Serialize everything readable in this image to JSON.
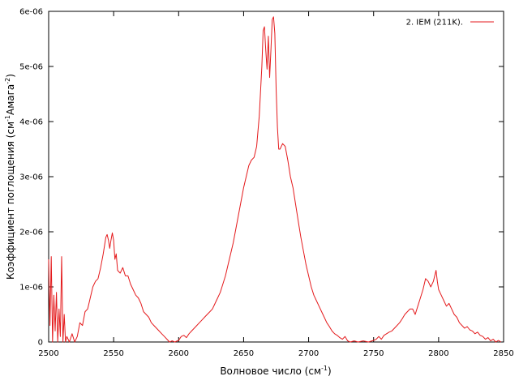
{
  "chart_data": {
    "type": "line",
    "xlabel": "Волновое число (см",
    "xlabel_sup": "-1",
    "xlabel_end": ")",
    "ylabel_parts": [
      "Коэффициент поглощения (см",
      "-1",
      "Амага",
      "-2",
      ")"
    ],
    "xlim": [
      2500,
      2850
    ],
    "ylim": [
      0,
      6e-06
    ],
    "x_ticks": [
      "2500",
      "2550",
      "2600",
      "2650",
      "2700",
      "2750",
      "2800",
      "2850"
    ],
    "x_tick_values": [
      2500,
      2550,
      2600,
      2650,
      2700,
      2750,
      2800,
      2850
    ],
    "y_ticks": [
      "0",
      "1e-06",
      "2e-06",
      "3e-06",
      "4e-06",
      "5e-06",
      "6e-06"
    ],
    "y_tick_values": [
      0,
      1e-06,
      2e-06,
      3e-06,
      4e-06,
      5e-06,
      6e-06
    ],
    "grid": false,
    "legend_position": "top-right",
    "series": [
      {
        "name": "2. IEM (211K).",
        "color": "#e41a1c",
        "points": [
          [
            2500,
            1.5e-06
          ],
          [
            2501,
            3e-07
          ],
          [
            2502,
            1.55e-06
          ],
          [
            2503,
            0.0
          ],
          [
            2504,
            8.5e-07
          ],
          [
            2505,
            2e-07
          ],
          [
            2506,
            9e-07
          ],
          [
            2507,
            0.0
          ],
          [
            2508,
            6e-07
          ],
          [
            2509,
            1e-07
          ],
          [
            2510,
            1.55e-06
          ],
          [
            2511,
            0.0
          ],
          [
            2512,
            5e-07
          ],
          [
            2513,
            0.0
          ],
          [
            2514,
            1e-07
          ],
          [
            2516,
            0.0
          ],
          [
            2518,
            1.5e-07
          ],
          [
            2520,
            0.0
          ],
          [
            2522,
            1e-07
          ],
          [
            2524,
            3.5e-07
          ],
          [
            2526,
            3e-07
          ],
          [
            2528,
            5.5e-07
          ],
          [
            2530,
            6e-07
          ],
          [
            2532,
            8e-07
          ],
          [
            2534,
            1e-06
          ],
          [
            2536,
            1.1e-06
          ],
          [
            2538,
            1.15e-06
          ],
          [
            2540,
            1.35e-06
          ],
          [
            2542,
            1.6e-06
          ],
          [
            2543,
            1.75e-06
          ],
          [
            2544,
            1.9e-06
          ],
          [
            2545,
            1.95e-06
          ],
          [
            2546,
            1.85e-06
          ],
          [
            2547,
            1.7e-06
          ],
          [
            2548,
            1.85e-06
          ],
          [
            2549,
            1.98e-06
          ],
          [
            2550,
            1.85e-06
          ],
          [
            2551,
            1.5e-06
          ],
          [
            2552,
            1.6e-06
          ],
          [
            2553,
            1.3e-06
          ],
          [
            2555,
            1.25e-06
          ],
          [
            2557,
            1.35e-06
          ],
          [
            2559,
            1.2e-06
          ],
          [
            2561,
            1.2e-06
          ],
          [
            2563,
            1.05e-06
          ],
          [
            2565,
            9.5e-07
          ],
          [
            2567,
            8.5e-07
          ],
          [
            2569,
            8e-07
          ],
          [
            2571,
            7e-07
          ],
          [
            2573,
            5.5e-07
          ],
          [
            2575,
            5e-07
          ],
          [
            2577,
            4.5e-07
          ],
          [
            2579,
            3.5e-07
          ],
          [
            2581,
            3e-07
          ],
          [
            2583,
            2.5e-07
          ],
          [
            2585,
            2e-07
          ],
          [
            2587,
            1.5e-07
          ],
          [
            2589,
            1e-07
          ],
          [
            2591,
            5e-08
          ],
          [
            2593,
            0.0
          ],
          [
            2595,
            2e-08
          ],
          [
            2597,
            0.0
          ],
          [
            2600,
            3e-08
          ],
          [
            2602,
            1e-07
          ],
          [
            2604,
            1.2e-07
          ],
          [
            2606,
            8e-08
          ],
          [
            2608,
            1.5e-07
          ],
          [
            2610,
            2e-07
          ],
          [
            2612,
            2.5e-07
          ],
          [
            2614,
            3e-07
          ],
          [
            2616,
            3.5e-07
          ],
          [
            2618,
            4e-07
          ],
          [
            2620,
            4.5e-07
          ],
          [
            2622,
            5e-07
          ],
          [
            2624,
            5.5e-07
          ],
          [
            2626,
            6e-07
          ],
          [
            2628,
            7e-07
          ],
          [
            2630,
            8e-07
          ],
          [
            2632,
            9e-07
          ],
          [
            2634,
            1.05e-06
          ],
          [
            2636,
            1.2e-06
          ],
          [
            2638,
            1.4e-06
          ],
          [
            2640,
            1.6e-06
          ],
          [
            2642,
            1.8e-06
          ],
          [
            2644,
            2.05e-06
          ],
          [
            2646,
            2.3e-06
          ],
          [
            2648,
            2.55e-06
          ],
          [
            2650,
            2.8e-06
          ],
          [
            2652,
            3e-06
          ],
          [
            2654,
            3.2e-06
          ],
          [
            2656,
            3.3e-06
          ],
          [
            2658,
            3.35e-06
          ],
          [
            2660,
            3.55e-06
          ],
          [
            2662,
            4.1e-06
          ],
          [
            2664,
            5e-06
          ],
          [
            2665,
            5.65e-06
          ],
          [
            2666,
            5.72e-06
          ],
          [
            2667,
            5.3e-06
          ],
          [
            2668,
            4.95e-06
          ],
          [
            2669,
            5.55e-06
          ],
          [
            2670,
            4.8e-06
          ],
          [
            2671,
            5.3e-06
          ],
          [
            2672,
            5.85e-06
          ],
          [
            2673,
            5.9e-06
          ],
          [
            2674,
            5.6e-06
          ],
          [
            2675,
            4.6e-06
          ],
          [
            2676,
            3.9e-06
          ],
          [
            2677,
            3.5e-06
          ],
          [
            2678,
            3.5e-06
          ],
          [
            2680,
            3.6e-06
          ],
          [
            2682,
            3.55e-06
          ],
          [
            2684,
            3.3e-06
          ],
          [
            2686,
            3e-06
          ],
          [
            2688,
            2.8e-06
          ],
          [
            2690,
            2.5e-06
          ],
          [
            2692,
            2.2e-06
          ],
          [
            2694,
            1.9e-06
          ],
          [
            2696,
            1.65e-06
          ],
          [
            2698,
            1.4e-06
          ],
          [
            2700,
            1.2e-06
          ],
          [
            2702,
            1e-06
          ],
          [
            2704,
            8.5e-07
          ],
          [
            2706,
            7.5e-07
          ],
          [
            2708,
            6.5e-07
          ],
          [
            2710,
            5.5e-07
          ],
          [
            2712,
            4.5e-07
          ],
          [
            2714,
            3.5e-07
          ],
          [
            2716,
            2.8e-07
          ],
          [
            2718,
            2e-07
          ],
          [
            2720,
            1.5e-07
          ],
          [
            2722,
            1.2e-07
          ],
          [
            2724,
            8e-08
          ],
          [
            2726,
            5e-08
          ],
          [
            2728,
            1e-07
          ],
          [
            2730,
            2e-08
          ],
          [
            2732,
            0.0
          ],
          [
            2735,
            2e-08
          ],
          [
            2738,
            0.0
          ],
          [
            2742,
            2e-08
          ],
          [
            2746,
            0.0
          ],
          [
            2750,
            3e-08
          ],
          [
            2752,
            5e-08
          ],
          [
            2754,
            1e-07
          ],
          [
            2756,
            5e-08
          ],
          [
            2758,
            1.2e-07
          ],
          [
            2760,
            1.5e-07
          ],
          [
            2762,
            1.8e-07
          ],
          [
            2764,
            2e-07
          ],
          [
            2766,
            2.5e-07
          ],
          [
            2768,
            3e-07
          ],
          [
            2770,
            3.5e-07
          ],
          [
            2772,
            4.2e-07
          ],
          [
            2774,
            5e-07
          ],
          [
            2776,
            5.5e-07
          ],
          [
            2778,
            6e-07
          ],
          [
            2780,
            6e-07
          ],
          [
            2782,
            5e-07
          ],
          [
            2784,
            6.5e-07
          ],
          [
            2786,
            8e-07
          ],
          [
            2788,
            9.5e-07
          ],
          [
            2790,
            1.15e-06
          ],
          [
            2792,
            1.1e-06
          ],
          [
            2794,
            1e-06
          ],
          [
            2796,
            1.1e-06
          ],
          [
            2798,
            1.3e-06
          ],
          [
            2799,
            1.1e-06
          ],
          [
            2800,
            9.5e-07
          ],
          [
            2802,
            8.5e-07
          ],
          [
            2804,
            7.5e-07
          ],
          [
            2806,
            6.5e-07
          ],
          [
            2808,
            7e-07
          ],
          [
            2810,
            6e-07
          ],
          [
            2812,
            5e-07
          ],
          [
            2814,
            4.5e-07
          ],
          [
            2816,
            3.5e-07
          ],
          [
            2818,
            3e-07
          ],
          [
            2820,
            2.5e-07
          ],
          [
            2822,
            2.8e-07
          ],
          [
            2824,
            2.2e-07
          ],
          [
            2826,
            2e-07
          ],
          [
            2828,
            1.5e-07
          ],
          [
            2830,
            1.8e-07
          ],
          [
            2832,
            1.2e-07
          ],
          [
            2834,
            1e-07
          ],
          [
            2836,
            5e-08
          ],
          [
            2838,
            8e-08
          ],
          [
            2840,
            2e-08
          ],
          [
            2842,
            5e-08
          ],
          [
            2844,
            0.0
          ],
          [
            2846,
            3e-08
          ],
          [
            2848,
            0.0
          ]
        ]
      }
    ]
  }
}
